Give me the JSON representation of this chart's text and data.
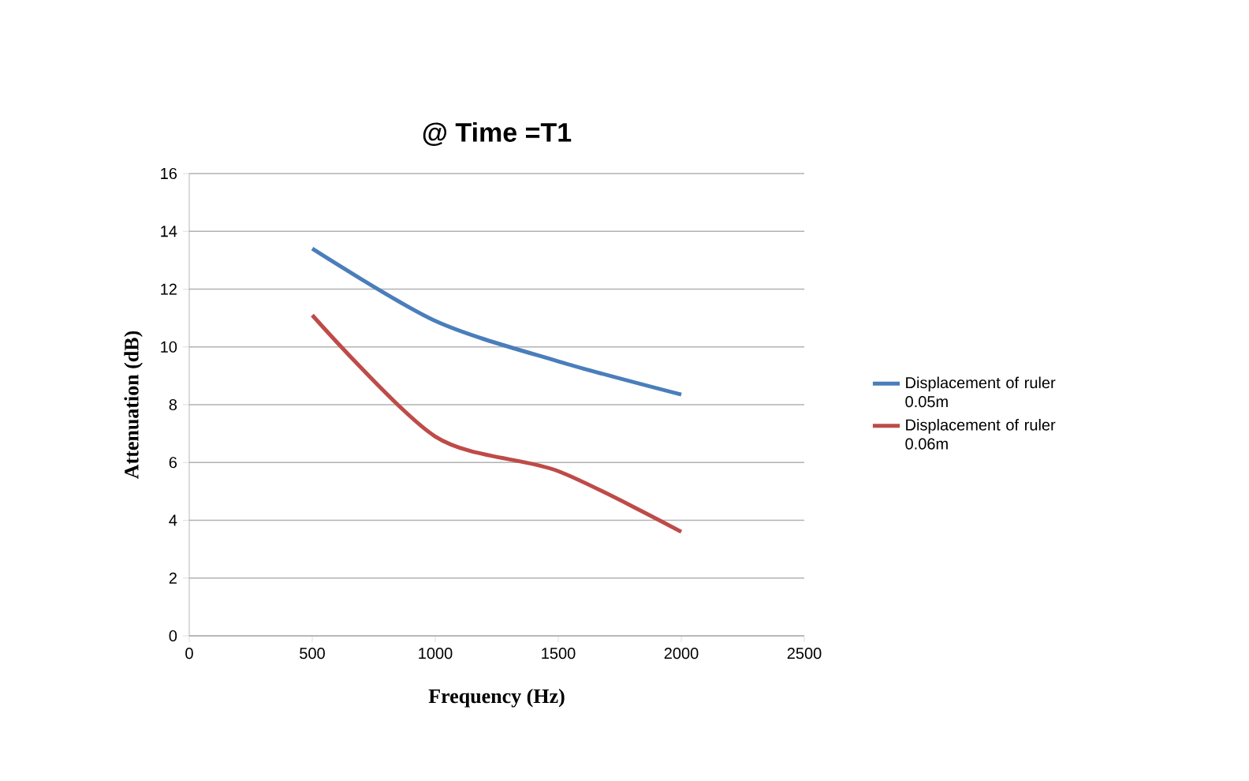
{
  "chart_data": {
    "type": "line",
    "title": "@ Time =T1",
    "xlabel": "Frequency (Hz)",
    "ylabel": "Attenuation (dB)",
    "x": [
      500,
      1000,
      1500,
      2000
    ],
    "series": [
      {
        "name": "Displacement of ruler 0.05m",
        "color": "#4a7ebb",
        "values": [
          13.4,
          10.9,
          9.5,
          8.35
        ]
      },
      {
        "name": "Displacement of ruler 0.06m",
        "color": "#be4b48",
        "values": [
          11.1,
          6.9,
          5.7,
          3.6
        ]
      }
    ],
    "xlim": [
      0,
      2500
    ],
    "xticks": [
      0,
      500,
      1000,
      1500,
      2000,
      2500
    ],
    "ylim": [
      0,
      16
    ],
    "yticks": [
      0,
      2,
      4,
      6,
      8,
      10,
      12,
      14,
      16
    ],
    "grid": "y",
    "legend": "right",
    "marker": "none",
    "line_style": "solid"
  }
}
